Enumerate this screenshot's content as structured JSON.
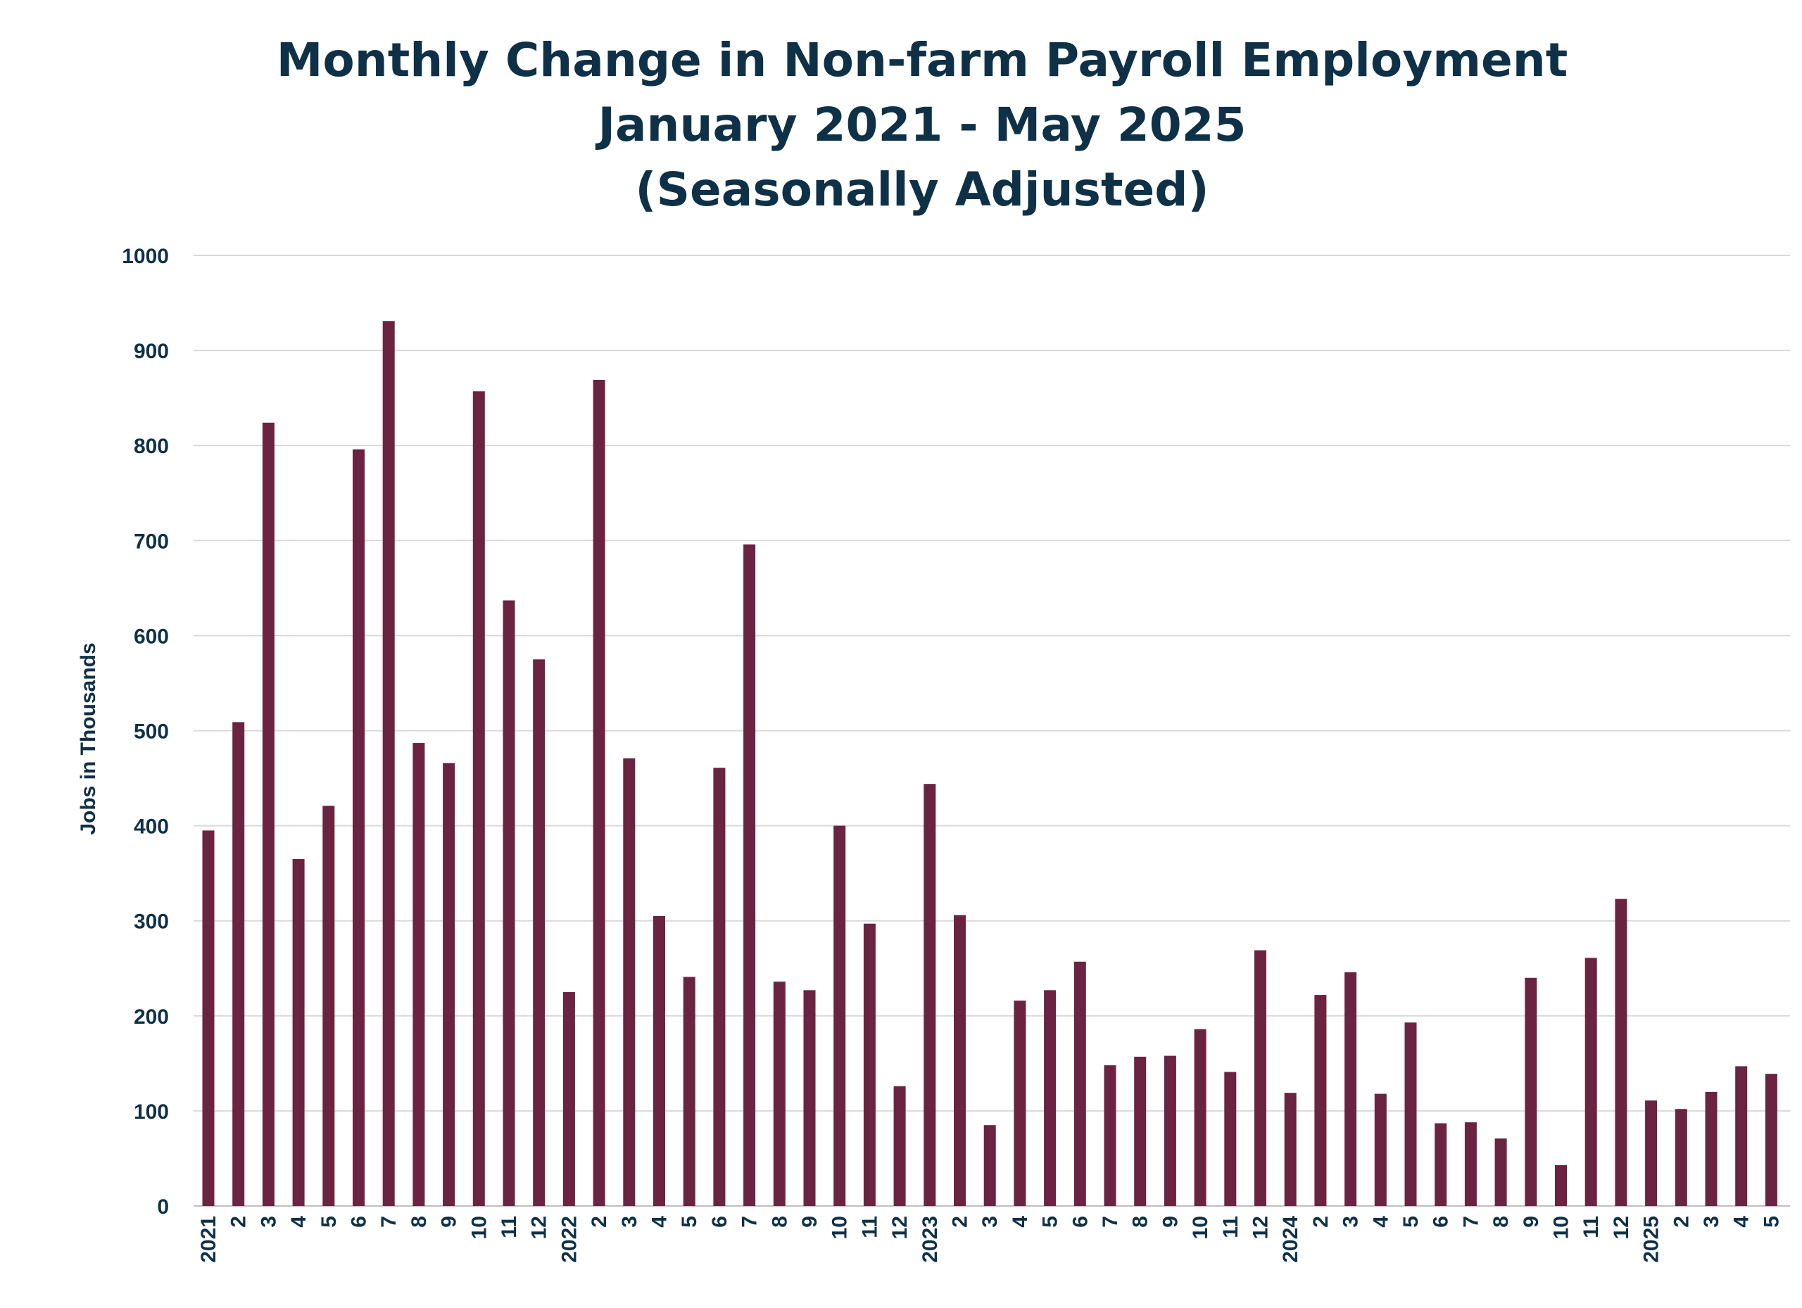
{
  "chart_data": {
    "type": "bar",
    "title": "Monthly Change in Non-farm Payroll Employment",
    "subtitle": "January 2021 - May 2025",
    "subtitle2": "(Seasonally Adjusted)",
    "xlabel": "",
    "ylabel": "Jobs in Thousands",
    "ylim": [
      0,
      1000
    ],
    "yticks": [
      "0",
      "100",
      "200",
      "300",
      "400",
      "500",
      "600",
      "700",
      "800",
      "900",
      "1000"
    ],
    "grid": true,
    "bar_color": "#6b2342",
    "categories": [
      "2021",
      "2",
      "3",
      "4",
      "5",
      "6",
      "7",
      "8",
      "9",
      "10",
      "11",
      "12",
      "2022",
      "2",
      "3",
      "4",
      "5",
      "6",
      "7",
      "8",
      "9",
      "10",
      "11",
      "12",
      "2023",
      "2",
      "3",
      "4",
      "5",
      "6",
      "7",
      "8",
      "9",
      "10",
      "11",
      "12",
      "2024",
      "2",
      "3",
      "4",
      "5",
      "6",
      "7",
      "8",
      "9",
      "10",
      "11",
      "12",
      "2025",
      "2",
      "3",
      "4",
      "5"
    ],
    "values": [
      395,
      509,
      824,
      365,
      421,
      796,
      931,
      487,
      466,
      857,
      637,
      575,
      225,
      869,
      471,
      305,
      241,
      461,
      696,
      236,
      227,
      400,
      297,
      126,
      444,
      306,
      85,
      216,
      227,
      257,
      148,
      157,
      158,
      186,
      141,
      269,
      119,
      222,
      246,
      118,
      193,
      87,
      88,
      71,
      240,
      43,
      261,
      323,
      111,
      102,
      120,
      147,
      139
    ]
  }
}
